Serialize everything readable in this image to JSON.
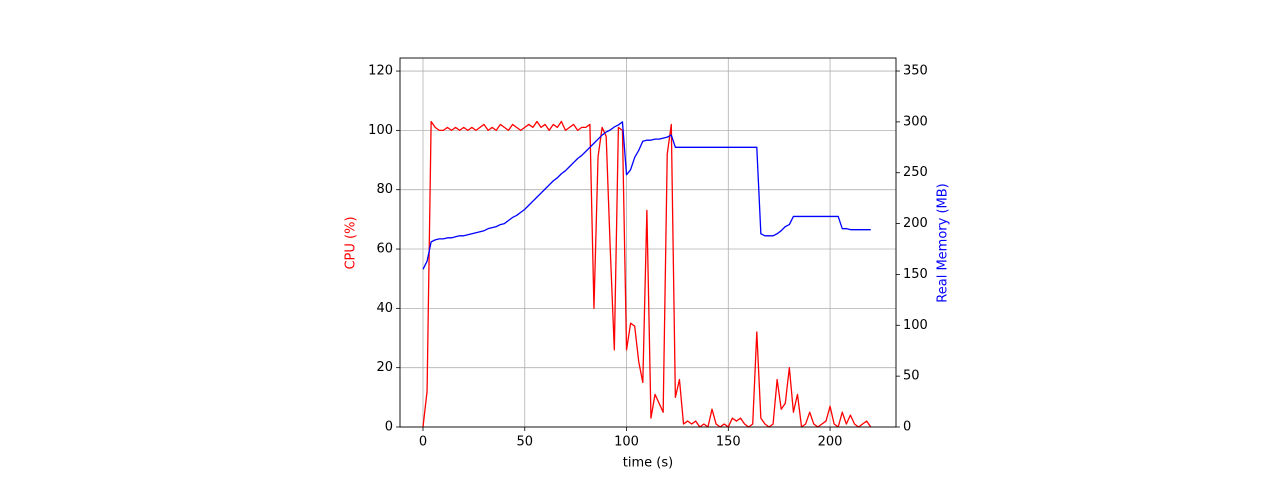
{
  "chart_data": {
    "type": "line",
    "xlabel": "time (s)",
    "ylabel": "CPU (%)",
    "y2label": "Real Memory (MB)",
    "x": [
      0,
      2,
      4,
      6,
      8,
      10,
      12,
      14,
      16,
      18,
      20,
      22,
      24,
      26,
      28,
      30,
      32,
      34,
      36,
      38,
      40,
      42,
      44,
      46,
      48,
      50,
      52,
      54,
      56,
      58,
      60,
      62,
      64,
      66,
      68,
      70,
      72,
      74,
      76,
      78,
      80,
      82,
      84,
      86,
      88,
      90,
      92,
      94,
      96,
      98,
      100,
      102,
      104,
      106,
      108,
      110,
      112,
      114,
      116,
      118,
      120,
      122,
      124,
      126,
      128,
      130,
      132,
      134,
      136,
      138,
      140,
      142,
      144,
      146,
      148,
      150,
      152,
      154,
      156,
      158,
      160,
      162,
      164,
      166,
      168,
      170,
      172,
      174,
      176,
      178,
      180,
      182,
      184,
      186,
      188,
      190,
      192,
      194,
      196,
      198,
      200,
      202,
      204,
      206,
      208,
      210,
      212,
      214,
      216,
      218,
      220
    ],
    "series": [
      {
        "color": "#ff0000",
        "values": [
          0,
          12,
          103,
          101,
          100,
          100,
          101,
          100,
          101,
          100,
          101,
          100,
          101,
          100,
          101,
          102,
          100,
          101,
          100,
          102,
          101,
          100,
          102,
          101,
          100,
          101,
          102,
          101,
          103,
          101,
          102,
          100,
          102,
          101,
          103,
          100,
          101,
          102,
          100,
          101,
          101,
          102,
          40,
          91,
          101,
          98,
          60,
          26,
          101,
          100,
          26,
          35,
          34,
          22,
          15,
          73,
          3,
          11,
          8,
          5,
          92,
          102,
          10,
          16,
          1,
          2,
          1,
          2,
          0,
          1,
          0,
          6,
          1,
          0,
          1,
          0,
          3,
          2,
          3,
          1,
          0,
          1,
          32,
          3,
          1,
          0,
          1,
          16,
          6,
          8,
          20,
          5,
          11,
          0,
          1,
          5,
          1,
          0,
          1,
          2,
          7,
          1,
          0,
          5,
          1,
          4,
          1,
          0,
          1,
          2,
          0
        ]
      },
      {
        "color": "#0000ff",
        "axis": "y2",
        "values": [
          155,
          163,
          182,
          184,
          185,
          185,
          186,
          186,
          187,
          188,
          188,
          189,
          190,
          191,
          192,
          193,
          195,
          196,
          197,
          199,
          200,
          203,
          206,
          208,
          211,
          214,
          218,
          222,
          226,
          230,
          234,
          238,
          242,
          245,
          249,
          252,
          256,
          260,
          264,
          267,
          271,
          275,
          279,
          283,
          287,
          290,
          292,
          295,
          297,
          300,
          248,
          253,
          265,
          272,
          281,
          282,
          282,
          283,
          283,
          284,
          285,
          287,
          275,
          275,
          275,
          275,
          275,
          275,
          275,
          275,
          275,
          275,
          275,
          275,
          275,
          275,
          275,
          275,
          275,
          275,
          275,
          275,
          275,
          190,
          188,
          188,
          188,
          190,
          193,
          197,
          199,
          207,
          207,
          207,
          207,
          207,
          207,
          207,
          207,
          207,
          207,
          207,
          207,
          195,
          195,
          194,
          194,
          194,
          194,
          194,
          194
        ]
      }
    ],
    "xlim": [
      -11.3,
      232.4
    ],
    "xticks": [
      0,
      50,
      100,
      150,
      200
    ],
    "ylim": [
      0,
      124.4
    ],
    "yticks": [
      0,
      20,
      40,
      60,
      80,
      100,
      120
    ],
    "y2lim": [
      0,
      362.8
    ],
    "y2ticks": [
      0,
      50,
      100,
      150,
      200,
      250,
      300,
      350
    ],
    "grid": true
  }
}
